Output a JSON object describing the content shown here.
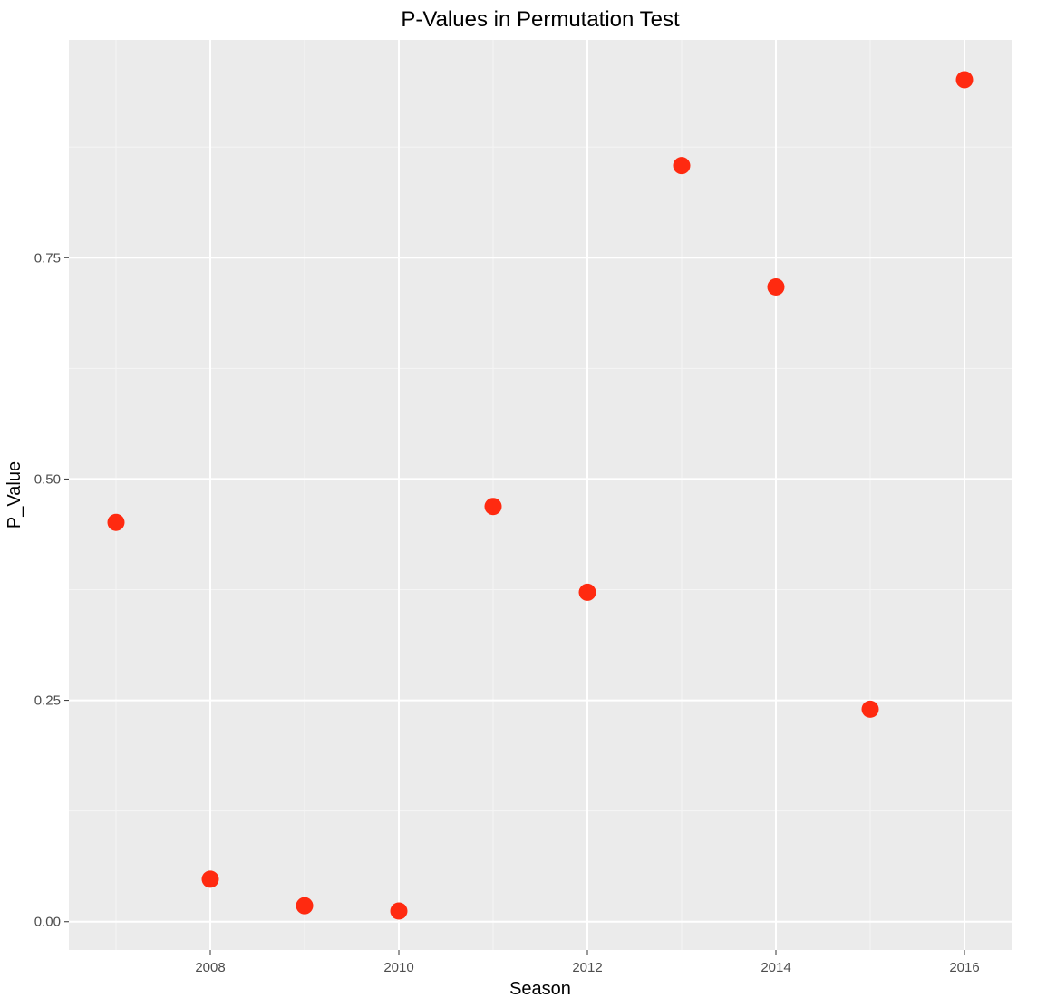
{
  "chart_data": {
    "type": "scatter",
    "title": "P-Values in Permutation Test",
    "xlabel": "Season",
    "ylabel": "P_Value",
    "x_ticks": [
      2008,
      2010,
      2012,
      2014,
      2016
    ],
    "y_ticks": [
      0.0,
      0.25,
      0.5,
      0.75
    ],
    "y_tick_labels": [
      "0.00",
      "0.25",
      "0.50",
      "0.75"
    ],
    "x_tick_labels": [
      "2008",
      "2010",
      "2012",
      "2014",
      "2016"
    ],
    "xlim": [
      2006.5,
      2016.5
    ],
    "ylim": [
      -0.032,
      0.996
    ],
    "grid": true,
    "series": [
      {
        "color": "#ff2a10",
        "points": [
          {
            "x": 2007,
            "y": 0.451
          },
          {
            "x": 2008,
            "y": 0.048
          },
          {
            "x": 2009,
            "y": 0.018
          },
          {
            "x": 2010,
            "y": 0.012
          },
          {
            "x": 2011,
            "y": 0.469
          },
          {
            "x": 2012,
            "y": 0.372
          },
          {
            "x": 2013,
            "y": 0.854
          },
          {
            "x": 2014,
            "y": 0.717
          },
          {
            "x": 2015,
            "y": 0.24
          },
          {
            "x": 2016,
            "y": 0.951
          }
        ]
      }
    ]
  },
  "colors": {
    "panel_background": "#ebebeb",
    "grid_major": "#ffffff",
    "grid_minor": "#f5f5f5",
    "tick_text": "#4d4d4d",
    "tick_mark": "#333333"
  }
}
